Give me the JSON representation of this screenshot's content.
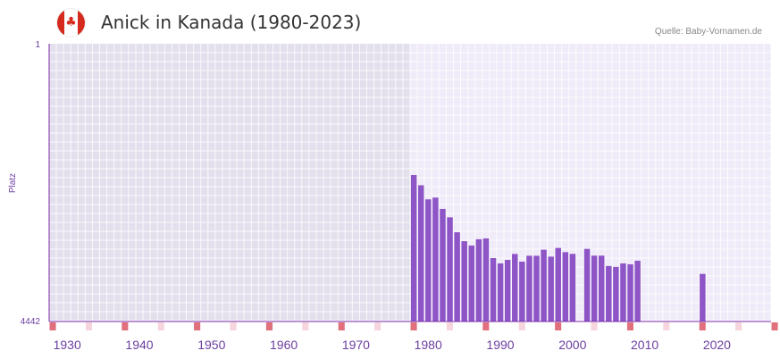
{
  "header": {
    "title": "Anick in Kanada (1980-2023)",
    "source": "Quelle: Baby-Vornamen.de",
    "flag_icon": "canada-flag-icon"
  },
  "colors": {
    "bar": "#8e55c7",
    "axis": "#7a2aa8",
    "tick_label": "#6b3fa0",
    "plot_bg_outer": "#e3dfec",
    "plot_bg_inner": "#f0ebf8",
    "decade_marker": "#e0707c",
    "half_decade_marker": "#f6d5dc"
  },
  "chart_data": {
    "type": "bar",
    "title": "Anick in Kanada (1980-2023)",
    "ylabel": "Platz",
    "xlabel": "",
    "y_reversed": true,
    "ylim": [
      1,
      4442
    ],
    "xlim": [
      1928,
      2029
    ],
    "data_year_range": [
      1978,
      2028
    ],
    "y_tick_labels": [
      "1",
      "4442"
    ],
    "x_ticks": [
      1930,
      1940,
      1950,
      1960,
      1970,
      1980,
      1990,
      2000,
      2010,
      2020
    ],
    "decade_markers": [
      1928,
      1938,
      1948,
      1958,
      1968,
      1978,
      1988,
      1998,
      2008,
      2018,
      2028
    ],
    "half_decade_markers": [
      1933,
      1943,
      1953,
      1963,
      1973,
      1983,
      1993,
      2003,
      2013,
      2023
    ],
    "years": [
      1978,
      1979,
      1980,
      1981,
      1982,
      1983,
      1984,
      1985,
      1986,
      1987,
      1988,
      1989,
      1990,
      1991,
      1992,
      1993,
      1994,
      1995,
      1996,
      1997,
      1998,
      1999,
      2000,
      2002,
      2003,
      2004,
      2005,
      2006,
      2007,
      2008,
      2009,
      2018
    ],
    "values": [
      2100,
      2264,
      2489,
      2461,
      2642,
      2776,
      3015,
      3158,
      3227,
      3127,
      3114,
      3428,
      3513,
      3457,
      3362,
      3485,
      3391,
      3391,
      3294,
      3405,
      3266,
      3333,
      3361,
      3281,
      3389,
      3389,
      3555,
      3569,
      3513,
      3527,
      3470,
      3681
    ]
  }
}
